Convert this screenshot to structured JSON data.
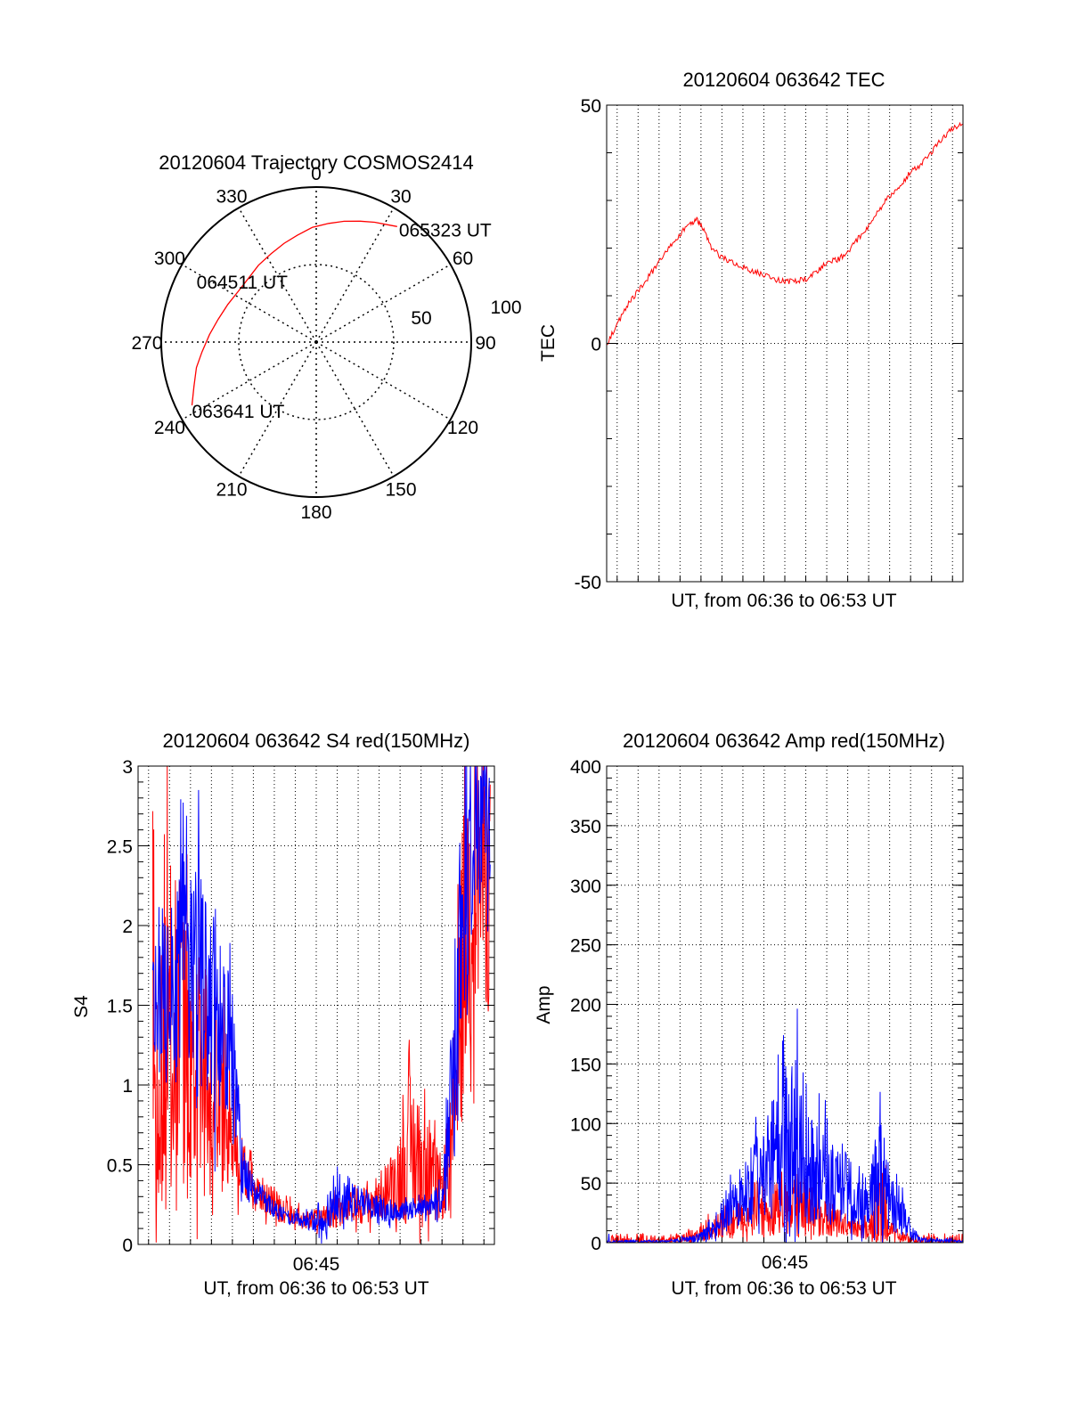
{
  "colors": {
    "red": "#ff0000",
    "blue": "#0000ff",
    "axis": "#000000",
    "grid": "#000000",
    "background": "#ffffff"
  },
  "chart_data": [
    {
      "type": "polar",
      "title": "20120604 Trajectory COSMOS2414",
      "azimuth_labels": [
        "0",
        "30",
        "60",
        "90",
        "120",
        "150",
        "180",
        "210",
        "240",
        "270",
        "300",
        "330"
      ],
      "azimuth_angles": [
        0,
        30,
        60,
        90,
        120,
        150,
        180,
        210,
        240,
        270,
        300,
        330
      ],
      "ring_labels": [
        "50",
        "100"
      ],
      "ring_values": [
        50,
        100
      ],
      "grid": true,
      "series": [
        {
          "color": "red",
          "points": [
            {
              "az": 243,
              "r": 90
            },
            {
              "az": 250,
              "r": 84
            },
            {
              "az": 258,
              "r": 79
            },
            {
              "az": 265,
              "r": 74
            },
            {
              "az": 274,
              "r": 69
            },
            {
              "az": 283,
              "r": 65
            },
            {
              "az": 293,
              "r": 62
            },
            {
              "az": 303,
              "r": 60
            },
            {
              "az": 313,
              "r": 60
            },
            {
              "az": 323,
              "r": 62
            },
            {
              "az": 333,
              "r": 64
            },
            {
              "az": 342,
              "r": 67
            },
            {
              "az": 350,
              "r": 70
            },
            {
              "az": 358,
              "r": 74
            },
            {
              "az": 6,
              "r": 77
            },
            {
              "az": 13,
              "r": 80
            },
            {
              "az": 20,
              "r": 83
            },
            {
              "az": 26,
              "r": 86
            },
            {
              "az": 32,
              "r": 89
            },
            {
              "az": 35,
              "r": 91
            }
          ]
        }
      ],
      "annotations": [
        {
          "text": "063641 UT",
          "az": 243,
          "r": 90
        },
        {
          "text": "064511 UT",
          "az": 313,
          "r": 60
        },
        {
          "text": "065323 UT",
          "az": 35,
          "r": 91
        }
      ]
    },
    {
      "type": "line",
      "title": "20120604 063642 TEC",
      "xlabel": "UT, from 06:36 to 06:53 UT",
      "ylabel": "TEC",
      "xlim": [
        0,
        17
      ],
      "ylim": [
        -50,
        50
      ],
      "yticks": [
        "-50",
        "0",
        "50"
      ],
      "ytick_values": [
        -50,
        0,
        50
      ],
      "grid": true,
      "series": [
        {
          "color": "red",
          "x": [
            0.0,
            0.5,
            1.0,
            1.5,
            2.0,
            2.5,
            3.0,
            3.5,
            4.0,
            4.3,
            4.6,
            5.0,
            5.5,
            6.0,
            6.5,
            7.0,
            7.5,
            8.0,
            8.5,
            9.0,
            9.5,
            10.0,
            10.5,
            11.0,
            11.5,
            12.0,
            12.5,
            13.0,
            13.5,
            14.0,
            14.5,
            15.0,
            15.5,
            16.0,
            16.5,
            17.0
          ],
          "y": [
            0,
            4,
            8,
            11,
            14,
            17,
            20,
            23,
            25,
            26,
            24,
            20,
            18,
            17,
            16,
            15,
            14.5,
            13.5,
            13,
            13,
            13.5,
            15,
            17,
            17.5,
            19,
            22,
            24.5,
            28,
            31,
            33,
            36,
            37.5,
            40,
            43,
            45,
            46
          ]
        }
      ]
    },
    {
      "type": "line",
      "title": "20120604 063642 S4 red(150MHz)",
      "xlabel": "UT, from 06:36 to 06:53 UT",
      "ylabel": "S4",
      "xlim": [
        0,
        17
      ],
      "ylim": [
        0,
        3
      ],
      "xticks": [
        "06:45"
      ],
      "xtick_values": [
        8.5
      ],
      "yticks": [
        "0",
        "0.5",
        "1",
        "1.5",
        "2",
        "2.5",
        "3"
      ],
      "ytick_values": [
        0,
        0.5,
        1,
        1.5,
        2,
        2.5,
        3
      ],
      "grid": true,
      "series": [
        {
          "color": "red",
          "x": [
            0.7,
            1.1,
            1.5,
            2.0,
            2.5,
            3.0,
            3.5,
            4.0,
            4.5,
            5.0,
            5.5,
            6.0,
            6.5,
            7.0,
            7.5,
            8.0,
            8.5,
            9.0,
            9.5,
            10.0,
            10.5,
            11.0,
            11.5,
            12.0,
            12.5,
            13.0,
            13.5,
            14.0,
            14.5,
            15.0,
            15.5,
            16.0,
            16.5,
            16.8
          ],
          "y": [
            1.6,
            1.5,
            1.3,
            1.2,
            1.1,
            1.1,
            1.0,
            0.9,
            0.7,
            0.45,
            0.35,
            0.3,
            0.25,
            0.2,
            0.18,
            0.15,
            0.15,
            0.18,
            0.2,
            0.22,
            0.25,
            0.25,
            0.3,
            0.35,
            0.45,
            0.6,
            0.5,
            0.4,
            0.35,
            0.6,
            1.8,
            2.3,
            2.4,
            2.3
          ],
          "spread": [
            1.3,
            1.2,
            1.2,
            1.1,
            0.9,
            0.8,
            0.7,
            0.6,
            0.3,
            0.2,
            0.15,
            0.12,
            0.1,
            0.08,
            0.06,
            0.06,
            0.06,
            0.08,
            0.1,
            0.1,
            0.12,
            0.12,
            0.15,
            0.2,
            0.3,
            0.5,
            0.4,
            0.3,
            0.2,
            0.4,
            1.0,
            0.9,
            0.9,
            0.9
          ]
        },
        {
          "color": "blue",
          "x": [
            0.7,
            1.1,
            1.5,
            2.0,
            2.5,
            3.0,
            3.5,
            4.0,
            4.5,
            5.0,
            5.5,
            6.0,
            6.5,
            7.0,
            7.5,
            8.0,
            8.5,
            9.0,
            9.5,
            10.0,
            10.5,
            11.0,
            11.5,
            12.0,
            12.5,
            13.0,
            13.5,
            14.0,
            14.5,
            15.0,
            15.5,
            16.0,
            16.5,
            16.8
          ],
          "y": [
            1.5,
            1.6,
            1.7,
            1.8,
            1.7,
            1.6,
            1.5,
            1.4,
            1.2,
            0.45,
            0.35,
            0.28,
            0.22,
            0.18,
            0.15,
            0.15,
            0.17,
            0.2,
            0.25,
            0.3,
            0.28,
            0.25,
            0.22,
            0.22,
            0.2,
            0.22,
            0.25,
            0.22,
            0.3,
            1.0,
            2.2,
            2.6,
            2.7,
            2.5
          ],
          "spread": [
            0.4,
            0.6,
            0.7,
            0.8,
            0.8,
            0.8,
            0.7,
            0.6,
            0.4,
            0.15,
            0.1,
            0.08,
            0.06,
            0.05,
            0.05,
            0.05,
            0.1,
            0.15,
            0.15,
            0.15,
            0.1,
            0.08,
            0.08,
            0.08,
            0.06,
            0.06,
            0.08,
            0.06,
            0.2,
            0.6,
            0.8,
            0.6,
            0.5,
            0.4
          ]
        }
      ]
    },
    {
      "type": "line",
      "title": "20120604 063642 Amp red(150MHz)",
      "xlabel": "UT, from 06:36 to 06:53 UT",
      "ylabel": "Amp",
      "xlim": [
        0,
        17
      ],
      "ylim": [
        0,
        400
      ],
      "xticks": [
        "06:45"
      ],
      "xtick_values": [
        8.5
      ],
      "yticks": [
        "0",
        "50",
        "100",
        "150",
        "200",
        "250",
        "300",
        "350",
        "400"
      ],
      "ytick_values": [
        0,
        50,
        100,
        150,
        200,
        250,
        300,
        350,
        400
      ],
      "grid": true,
      "series": [
        {
          "color": "red",
          "x": [
            0,
            2,
            2.5,
            3,
            3.5,
            4,
            4.5,
            5,
            5.5,
            6,
            6.5,
            7,
            7.5,
            8,
            8.5,
            9,
            9.5,
            10,
            10.5,
            11,
            11.5,
            12,
            12.5,
            13,
            13.5,
            14,
            14.5,
            15,
            17
          ],
          "y": [
            0,
            0,
            1,
            2,
            3,
            5,
            8,
            12,
            15,
            18,
            20,
            22,
            25,
            28,
            30,
            32,
            30,
            25,
            20,
            18,
            15,
            12,
            10,
            12,
            10,
            5,
            2,
            0,
            0
          ],
          "spread": [
            1,
            1,
            2,
            3,
            4,
            6,
            8,
            10,
            12,
            14,
            15,
            18,
            20,
            22,
            25,
            28,
            25,
            20,
            15,
            12,
            10,
            8,
            8,
            80,
            10,
            6,
            2,
            1,
            1
          ]
        },
        {
          "color": "blue",
          "x": [
            0,
            2,
            2.5,
            3,
            3.5,
            4,
            4.5,
            5,
            5.5,
            6,
            6.5,
            7,
            7.5,
            8,
            8.5,
            9,
            9.5,
            10,
            10.5,
            11,
            11.5,
            12,
            12.5,
            13,
            13.5,
            14,
            14.5,
            15,
            17
          ],
          "y": [
            1,
            1,
            1,
            1,
            2,
            3,
            5,
            10,
            20,
            30,
            40,
            50,
            60,
            70,
            80,
            90,
            75,
            60,
            55,
            50,
            45,
            40,
            35,
            45,
            35,
            25,
            10,
            2,
            1
          ],
          "spread": [
            1,
            1,
            1,
            1,
            2,
            3,
            4,
            8,
            15,
            20,
            25,
            35,
            45,
            55,
            70,
            80,
            60,
            45,
            40,
            35,
            30,
            28,
            25,
            70,
            25,
            18,
            8,
            2,
            1
          ]
        }
      ]
    }
  ]
}
